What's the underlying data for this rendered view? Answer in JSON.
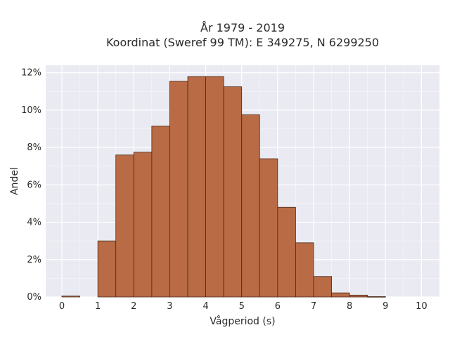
{
  "chart_data": {
    "type": "bar",
    "title_line1": "År 1979 - 2019",
    "title_line2": "Koordinat (Sweref 99 TM): E 349275, N 6299250",
    "xlabel": "Vågperiod (s)",
    "ylabel": "Andel",
    "bin_width": 0.5,
    "bin_starts": [
      0,
      0.5,
      1,
      1.5,
      2,
      2.5,
      3,
      3.5,
      4,
      4.5,
      5,
      5.5,
      6,
      6.5,
      7,
      7.5,
      8,
      8.5,
      9,
      9.5
    ],
    "values": [
      0.05,
      0,
      3.0,
      7.6,
      7.75,
      9.15,
      11.55,
      11.8,
      11.8,
      11.25,
      9.75,
      7.4,
      4.8,
      2.9,
      1.1,
      0.22,
      0.1,
      0.02,
      0,
      0
    ],
    "xlim": [
      -0.45,
      10.5
    ],
    "ylim": [
      0,
      12.4
    ],
    "x_ticks": [
      "0",
      "1",
      "2",
      "3",
      "4",
      "5",
      "6",
      "7",
      "8",
      "9",
      "10"
    ],
    "y_ticks": [
      "0%",
      "2%",
      "4%",
      "6%",
      "8%",
      "10%",
      "12%"
    ],
    "grid": true,
    "colors": {
      "bar_fill": "#b86b45",
      "bar_edge": "#4a2a1a",
      "plot_background": "#eaeaf2",
      "grid": "#ffffff"
    }
  }
}
